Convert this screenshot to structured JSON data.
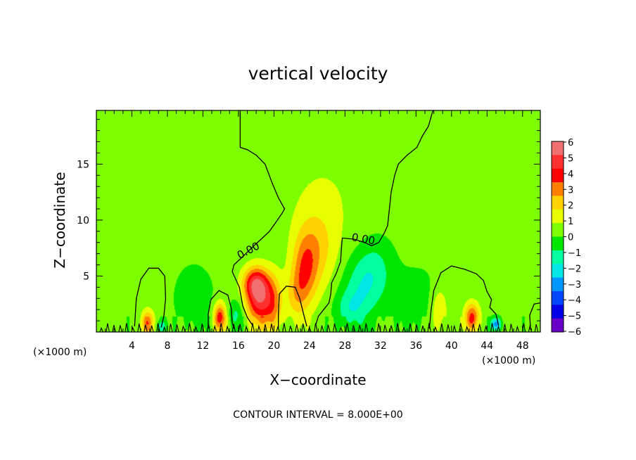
{
  "chart_data": {
    "type": "heatmap",
    "title": "vertical velocity",
    "xlabel": "X−coordinate",
    "ylabel": "Z−coordinate",
    "x_unit_left": "(×1000 m)",
    "x_unit_right": "(×1000 m)",
    "xlim": [
      0,
      50
    ],
    "ylim": [
      0,
      19.8
    ],
    "x_ticks": [
      4,
      8,
      12,
      16,
      20,
      24,
      28,
      32,
      36,
      40,
      44,
      48
    ],
    "x_tick_labels": [
      "4",
      "8",
      "12",
      "16",
      "20",
      "24",
      "28",
      "32",
      "36",
      "40",
      "44",
      "48"
    ],
    "y_ticks": [
      5,
      10,
      15
    ],
    "y_tick_labels": [
      "5",
      "10",
      "15"
    ],
    "colorbar": {
      "range": [
        -6,
        6
      ],
      "levels": [
        6,
        5,
        4,
        3,
        2,
        1,
        0,
        -1,
        -2,
        -3,
        -4,
        -5,
        -6
      ],
      "labels": [
        "6",
        "5",
        "4",
        "3",
        "2",
        "1",
        "0",
        "−1",
        "−2",
        "−3",
        "−4",
        "−5",
        "−6"
      ],
      "colors": [
        "#f07070",
        "#ff3030",
        "#ff0000",
        "#ff8000",
        "#ffd200",
        "#e8ff00",
        "#7dff00",
        "#00e600",
        "#00ff9e",
        "#00e6e6",
        "#0096ff",
        "#0046ff",
        "#0000e6",
        "#6a00c8"
      ]
    },
    "background_value": 0.3,
    "features": [
      {
        "x": 18.4,
        "z": 2.8,
        "value": 4.2
      },
      {
        "x": 17.9,
        "z": 4.4,
        "value": 3.2
      },
      {
        "x": 13.9,
        "z": 1.3,
        "value": 3.8
      },
      {
        "x": 20.0,
        "z": 2.5,
        "value": 1.8
      },
      {
        "x": 23.5,
        "z": 5.5,
        "value": 2.5
      },
      {
        "x": 24.8,
        "z": 7.5,
        "value": 1.6
      },
      {
        "x": 22.5,
        "z": 3.2,
        "value": 1.5
      },
      {
        "x": 5.8,
        "z": 0.8,
        "value": 3.0
      },
      {
        "x": 42.3,
        "z": 1.3,
        "value": 3.5
      },
      {
        "x": 38.6,
        "z": 2.0,
        "value": 1.5
      },
      {
        "x": 26.0,
        "z": 12.0,
        "value": 0.6
      },
      {
        "x": 30.0,
        "z": 4.0,
        "value": -1.6
      },
      {
        "x": 31.5,
        "z": 6.0,
        "value": -1.0
      },
      {
        "x": 28.5,
        "z": 2.0,
        "value": -1.3
      },
      {
        "x": 15.8,
        "z": 1.5,
        "value": -1.4
      },
      {
        "x": 11.0,
        "z": 3.0,
        "value": -0.9
      },
      {
        "x": 45.0,
        "z": 0.7,
        "value": -3.5
      },
      {
        "x": 7.3,
        "z": 0.5,
        "value": -1.5
      },
      {
        "x": 36.0,
        "z": 3.0,
        "value": -0.7
      }
    ],
    "contour_labels": [
      "0.00",
      "0.00"
    ],
    "contour_label_positions": [
      {
        "x": 17.3,
        "z": 7.0
      },
      {
        "x": 30.0,
        "z": 8.0
      }
    ],
    "contour_zero_boundaries": [
      [
        [
          16.2,
          19.8
        ],
        [
          16.2,
          16.5
        ],
        [
          17.0,
          16.3
        ],
        [
          18.0,
          15.8
        ],
        [
          19.0,
          15.0
        ],
        [
          19.8,
          13.3
        ],
        [
          20.5,
          12.0
        ],
        [
          21.2,
          11.0
        ],
        [
          20.9,
          10.6
        ],
        [
          20.3,
          9.9
        ],
        [
          19.5,
          9.0
        ],
        [
          18.7,
          8.4
        ],
        [
          17.6,
          7.6
        ],
        [
          16.7,
          6.9
        ],
        [
          15.5,
          6.0
        ],
        [
          15.3,
          5.4
        ],
        [
          16.1,
          4.0
        ],
        [
          16.5,
          2.3
        ],
        [
          17.0,
          1.3
        ],
        [
          17.6,
          0.6
        ]
      ],
      [
        [
          37.9,
          19.8
        ],
        [
          37.4,
          18.4
        ],
        [
          36.7,
          17.5
        ],
        [
          36.1,
          16.5
        ],
        [
          35.0,
          15.8
        ],
        [
          34.0,
          15.0
        ],
        [
          33.6,
          14.0
        ],
        [
          33.2,
          12.5
        ],
        [
          33.0,
          11.0
        ],
        [
          32.8,
          9.5
        ],
        [
          32.4,
          8.8
        ],
        [
          31.8,
          8.0
        ],
        [
          31.0,
          7.7
        ],
        [
          30.2,
          8.0
        ],
        [
          29.0,
          8.3
        ],
        [
          27.7,
          8.4
        ],
        [
          27.6,
          7.5
        ],
        [
          27.5,
          6.3
        ],
        [
          27.0,
          5.2
        ],
        [
          26.5,
          4.4
        ],
        [
          26.4,
          3.4
        ],
        [
          26.2,
          2.6
        ],
        [
          25.6,
          2.0
        ],
        [
          25.0,
          1.4
        ],
        [
          24.7,
          0.6
        ]
      ],
      [
        [
          20.5,
          0.3
        ],
        [
          20.5,
          1.6
        ],
        [
          20.6,
          3.4
        ],
        [
          21.4,
          4.1
        ],
        [
          22.4,
          4.0
        ],
        [
          22.9,
          3.0
        ],
        [
          23.4,
          1.4
        ],
        [
          23.7,
          0.5
        ]
      ],
      [
        [
          4.3,
          0.5
        ],
        [
          4.5,
          3.0
        ],
        [
          5.0,
          4.7
        ],
        [
          5.9,
          5.7
        ],
        [
          7.0,
          5.7
        ],
        [
          7.7,
          5.0
        ],
        [
          7.8,
          3.0
        ],
        [
          7.6,
          1.4
        ],
        [
          7.3,
          0.4
        ]
      ],
      [
        [
          12.6,
          0.3
        ],
        [
          12.6,
          1.6
        ],
        [
          12.9,
          2.9
        ],
        [
          13.8,
          3.7
        ],
        [
          14.8,
          3.3
        ],
        [
          15.2,
          2.1
        ],
        [
          15.3,
          0.8
        ],
        [
          15.5,
          0.3
        ]
      ],
      [
        [
          37.5,
          0.3
        ],
        [
          37.7,
          2.0
        ],
        [
          38.0,
          3.7
        ],
        [
          38.8,
          5.3
        ],
        [
          40.0,
          5.9
        ],
        [
          41.5,
          5.6
        ],
        [
          42.8,
          5.2
        ],
        [
          43.6,
          4.6
        ],
        [
          44.0,
          3.6
        ],
        [
          44.5,
          2.9
        ],
        [
          44.3,
          2.2
        ],
        [
          45.0,
          1.6
        ],
        [
          45.3,
          0.6
        ]
      ],
      [
        [
          48.9,
          0.2
        ],
        [
          48.8,
          1.5
        ],
        [
          49.3,
          2.5
        ],
        [
          50.0,
          2.6
        ]
      ]
    ],
    "note": "CONTOUR INTERVAL = 8.000E+00"
  }
}
